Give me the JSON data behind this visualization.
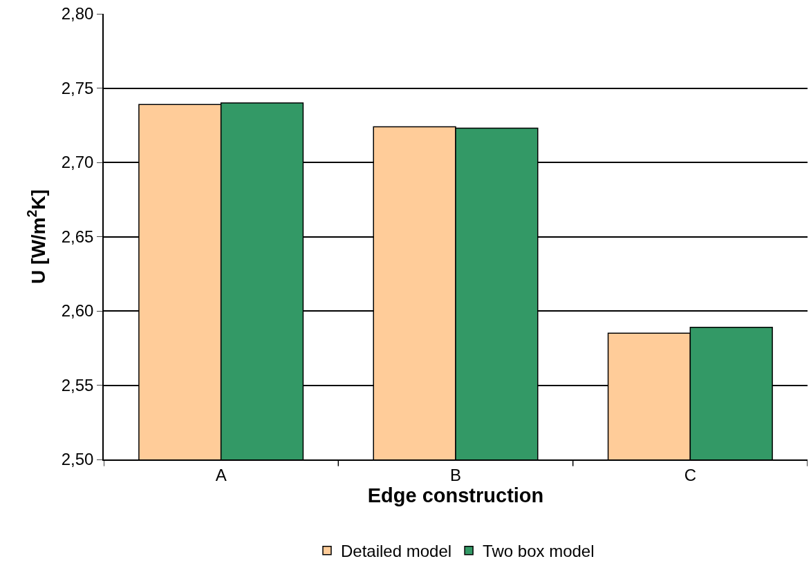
{
  "chart_data": {
    "type": "bar",
    "xlabel": "Edge construction",
    "ylabel": "U [W/m$^{2}$K]",
    "categories": [
      "A",
      "B",
      "C"
    ],
    "series": [
      {
        "name": "Detailed model",
        "color": "#ffcc99",
        "values": [
          2.739,
          2.724,
          2.585
        ]
      },
      {
        "name": "Two box model",
        "color": "#339966",
        "values": [
          2.74,
          2.723,
          2.589
        ]
      }
    ],
    "ylim": [
      2.5,
      2.8
    ],
    "yticks": [
      {
        "value": 2.5,
        "label": "2,50"
      },
      {
        "value": 2.55,
        "label": "2,55"
      },
      {
        "value": 2.6,
        "label": "2,60"
      },
      {
        "value": 2.65,
        "label": "2,65"
      },
      {
        "value": 2.7,
        "label": "2,70"
      },
      {
        "value": 2.75,
        "label": "2,75"
      },
      {
        "value": 2.8,
        "label": "2,80"
      }
    ],
    "grid": "y",
    "legend": "bottom"
  }
}
